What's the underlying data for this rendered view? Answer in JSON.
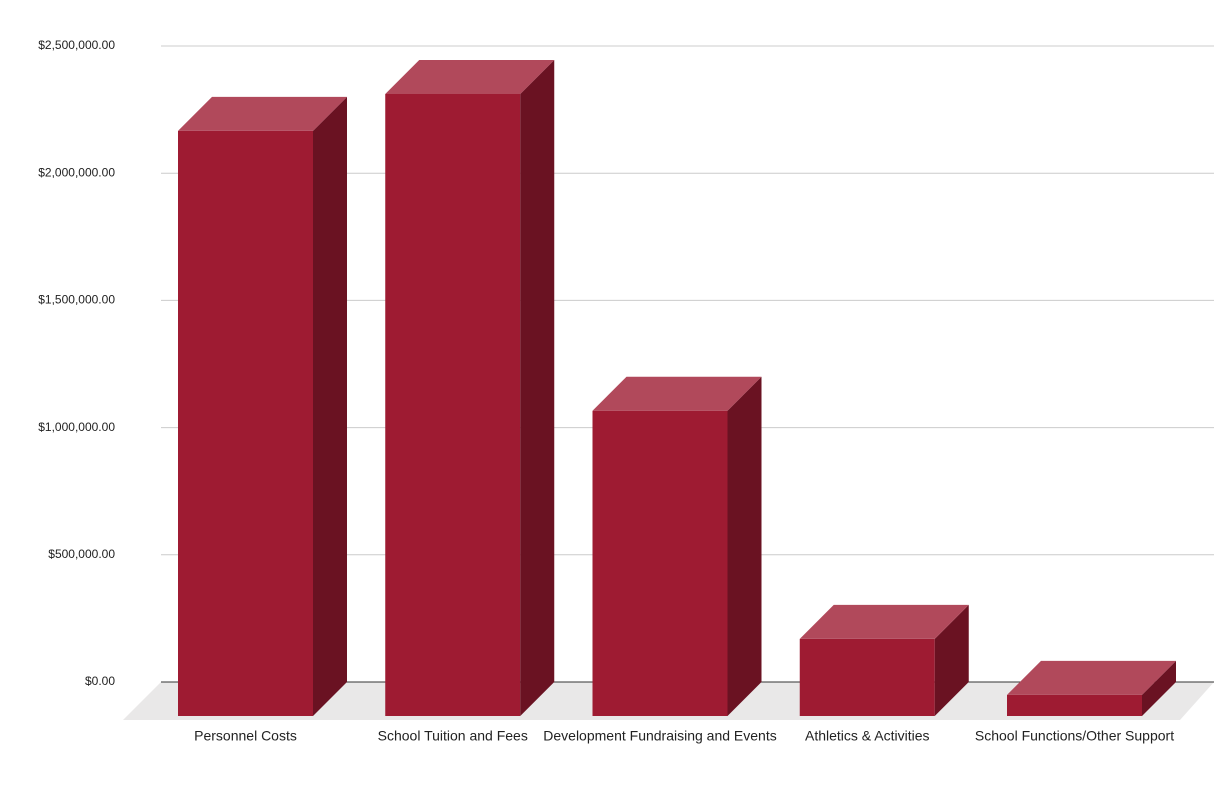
{
  "chart_data": {
    "type": "bar3d",
    "categories": [
      "Personnel Costs",
      "School Tuition and Fees",
      "Development Fundraising and Events",
      "Athletics & Activities",
      "School Functions/Other Support"
    ],
    "values": [
      2300000,
      2445000,
      1200000,
      303000,
      83000
    ],
    "color": "#9e1b32",
    "ylim": [
      0,
      2500000
    ],
    "yticks": [
      {
        "value": 0,
        "label": "$0.00"
      },
      {
        "value": 500000,
        "label": "$500,000.00"
      },
      {
        "value": 1000000,
        "label": "$1,000,000.00"
      },
      {
        "value": 1500000,
        "label": "$1,500,000.00"
      },
      {
        "value": 2000000,
        "label": "$2,000,000.00"
      },
      {
        "value": 2500000,
        "label": "$2,500,000.00"
      }
    ],
    "grid": true
  }
}
